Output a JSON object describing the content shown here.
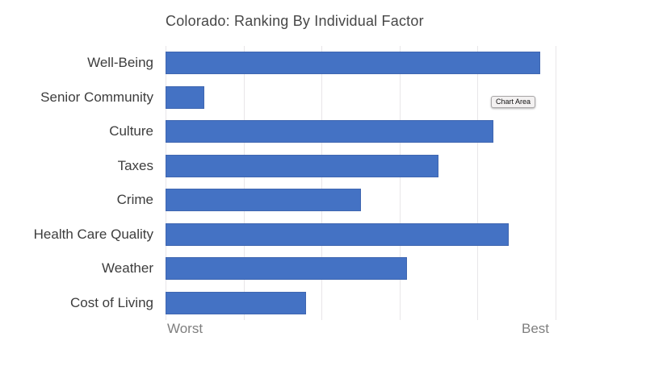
{
  "title": "Colorado: Ranking By Individual Factor",
  "tooltip": {
    "label": "Chart Area"
  },
  "axis": {
    "worst": "Worst",
    "best": "Best"
  },
  "colors": {
    "bar": "#4472c4",
    "bar_border": "#3f66b0",
    "gridline": "#e8e6e9",
    "title_text": "#474747",
    "category_text": "#3d3d3d",
    "axis_text": "#7f7f7f"
  },
  "chart_data": {
    "type": "bar",
    "orientation": "horizontal",
    "title": "Colorado: Ranking By Individual Factor",
    "categories": [
      "Well-Being",
      "Senior Community",
      "Culture",
      "Taxes",
      "Crime",
      "Health Care Quality",
      "Weather",
      "Cost of Living"
    ],
    "values": [
      48,
      5,
      42,
      35,
      25,
      44,
      31,
      18
    ],
    "xlim": [
      0,
      50
    ],
    "xticks": [
      0,
      10,
      20,
      30,
      40,
      50
    ],
    "x_end_labels": [
      "Worst",
      "Best"
    ],
    "ylabel": "",
    "xlabel": "",
    "grid": "vertical-major-only",
    "legend": false,
    "value_axis_numbers_hidden": true
  }
}
